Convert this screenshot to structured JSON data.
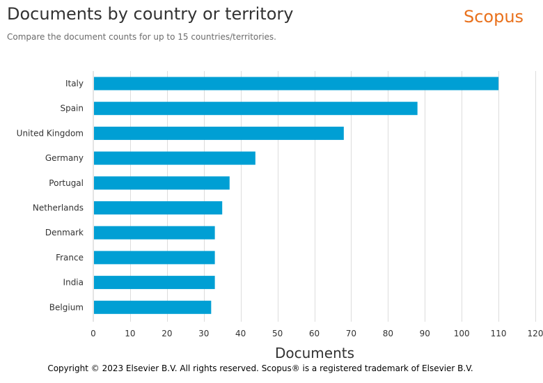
{
  "header": {
    "title": "Documents by country or territory",
    "subtitle": "Compare the document counts for up to 15 countries/territories.",
    "logo": "Scopus"
  },
  "footer": {
    "copyright": "Copyright © 2023 Elsevier B.V. All rights reserved. Scopus® is a registered trademark of Elsevier B.V."
  },
  "colors": {
    "bar": "#009fd4",
    "logo": "#e9711c",
    "grid": "#dcdcdc"
  },
  "chart_data": {
    "type": "bar",
    "orientation": "horizontal",
    "categories": [
      "Italy",
      "Spain",
      "United Kingdom",
      "Germany",
      "Portugal",
      "Netherlands",
      "Denmark",
      "France",
      "India",
      "Belgium"
    ],
    "values": [
      110,
      88,
      68,
      44,
      37,
      35,
      33,
      33,
      33,
      32
    ],
    "xlabel": "Documents",
    "ylabel": "",
    "xlim": [
      0,
      120
    ],
    "xticks": [
      0,
      10,
      20,
      30,
      40,
      50,
      60,
      70,
      80,
      90,
      100,
      110,
      120
    ],
    "grid": true
  }
}
